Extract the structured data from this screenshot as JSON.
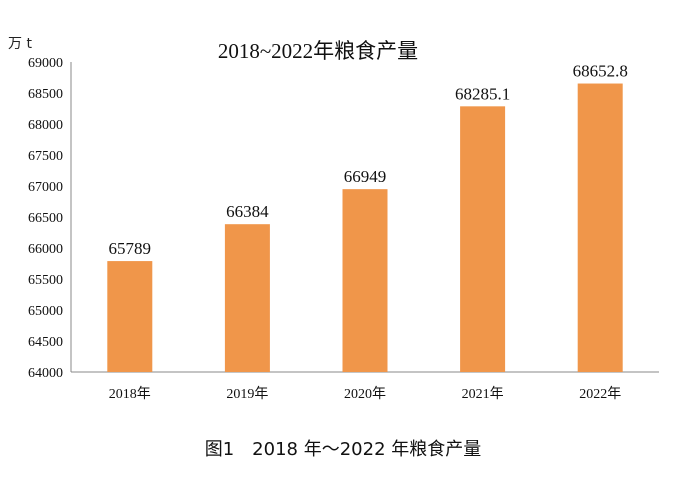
{
  "chart_data": {
    "type": "bar",
    "title": "2018~2022年粮食产量",
    "unit_label": "万 t",
    "caption": "图1　2018 年～2022 年粮食产量",
    "categories": [
      "2018年",
      "2019年",
      "2020年",
      "2021年",
      "2022年"
    ],
    "values": [
      65789,
      66384,
      66949,
      68285.1,
      68652.8
    ],
    "data_labels": [
      "65789",
      "66384",
      "66949",
      "68285.1",
      "68652.8"
    ],
    "ylim": [
      64000,
      69000
    ],
    "yticks": [
      64000,
      64500,
      65000,
      65500,
      66000,
      66500,
      67000,
      67500,
      68000,
      68500,
      69000
    ],
    "grid": false,
    "legend": "none",
    "bar_color": "#F0964A"
  }
}
